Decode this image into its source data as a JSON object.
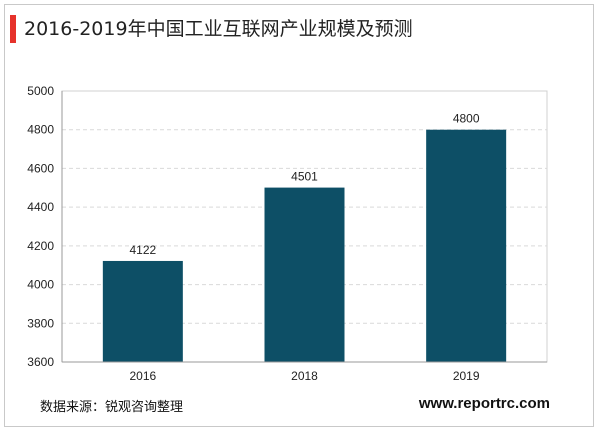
{
  "title": "2016-2019年中国工业互联网产业规模及预测",
  "source_label": "数据来源：锐观咨询整理",
  "website": "www.reportrc.com",
  "colors": {
    "bar": "#0d4f66",
    "accent": "#e6322b",
    "grid": "#d9d9d9"
  },
  "chart_data": {
    "type": "bar",
    "title": "2016-2019年中国工业互联网产业规模及预测",
    "xlabel": "",
    "ylabel": "",
    "categories": [
      "2016",
      "2018",
      "2019"
    ],
    "values": [
      4122,
      4501,
      4800
    ],
    "data_labels": [
      "4122",
      "4501",
      "4800"
    ],
    "ylim": [
      3600,
      5000
    ],
    "yticks": [
      3600,
      3800,
      4000,
      4200,
      4400,
      4600,
      4800,
      5000
    ],
    "grid": true,
    "legend": "none"
  }
}
